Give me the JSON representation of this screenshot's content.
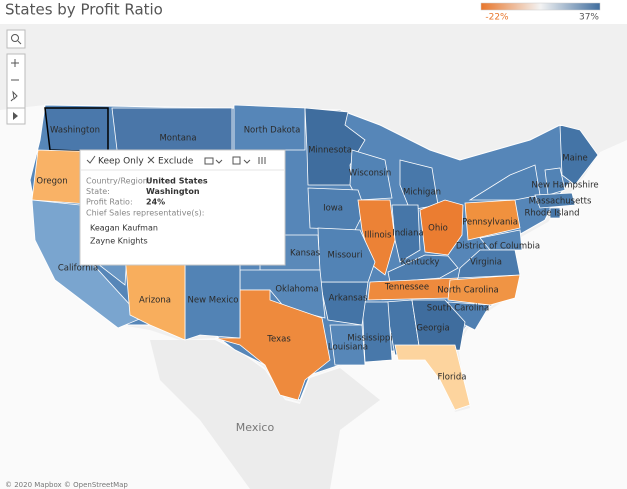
{
  "header": {
    "title": "States by Profit Ratio"
  },
  "legend": {
    "min_label": "-22%",
    "max_label": "37%",
    "colors": [
      "#e8762b",
      "#f3f3f3",
      "#3f6d9e"
    ]
  },
  "map": {
    "states": [
      {
        "label": "Washington",
        "color": "#4a78ab"
      },
      {
        "label": "Oregon",
        "color": "#f9b266"
      },
      {
        "label": "California",
        "color": "#7aa5cf"
      },
      {
        "label": "Montana",
        "color": "#4a76a8"
      },
      {
        "label": "North Dakota",
        "color": "#5686b8"
      },
      {
        "label": "Minnesota",
        "color": "#3f6d9e"
      },
      {
        "label": "Wisconsin",
        "color": "#5283b5"
      },
      {
        "label": "Michigan",
        "color": "#4878aa"
      },
      {
        "label": "Iowa",
        "color": "#4f7fb1"
      },
      {
        "label": "Illinois",
        "color": "#ec8236"
      },
      {
        "label": "Indiana",
        "color": "#4676a8"
      },
      {
        "label": "Ohio",
        "color": "#eb7d31"
      },
      {
        "label": "Pennsylvania",
        "color": "#f0913e"
      },
      {
        "label": "Maine",
        "color": "#4474a6"
      },
      {
        "label": "New Hampshire",
        "color": "#5283b5"
      },
      {
        "label": "Massachusetts",
        "color": "#4c7cad"
      },
      {
        "label": "Rhode Island",
        "color": "#4676a8"
      },
      {
        "label": "Kentucky",
        "color": "#4d7daf"
      },
      {
        "label": "District of Columbia",
        "color": "#5888b9"
      },
      {
        "label": "Virginia",
        "color": "#4b7bad"
      },
      {
        "label": "Tennessee",
        "color": "#ee8a3d"
      },
      {
        "label": "North Carolina",
        "color": "#f09444"
      },
      {
        "label": "South Carolina",
        "color": "#4f7fb1"
      },
      {
        "label": "Georgia",
        "color": "#3f6d9e"
      },
      {
        "label": "Mississippi",
        "color": "#4878aa"
      },
      {
        "label": "Florida",
        "color": "#fdd49e"
      },
      {
        "label": "Louisiana",
        "color": "#5787b8"
      },
      {
        "label": "Arkansas",
        "color": "#4474a6"
      },
      {
        "label": "Missouri",
        "color": "#5283b5"
      },
      {
        "label": "Kansas",
        "color": "#5a89b9"
      },
      {
        "label": "Oklahoma",
        "color": "#5888b9"
      },
      {
        "label": "Texas",
        "color": "#ee8a3d"
      },
      {
        "label": "New Mexico",
        "color": "#5283b5"
      },
      {
        "label": "Arizona",
        "color": "#f8ae5d"
      }
    ],
    "place_labels": [
      "Mexico"
    ],
    "attribution": "© 2020 Mapbox © OpenStreetMap"
  },
  "tooltip": {
    "actions": [
      "Keep Only",
      "Exclude"
    ],
    "fields": [
      {
        "label": "Country/Region:",
        "value": "United States"
      },
      {
        "label": "State:",
        "value": "Washington"
      },
      {
        "label": "Profit Ratio:",
        "value": "24%"
      }
    ],
    "section": "Chief Sales representative(s):",
    "names": [
      "Keagan Kaufman",
      "Zayne Knights"
    ]
  }
}
